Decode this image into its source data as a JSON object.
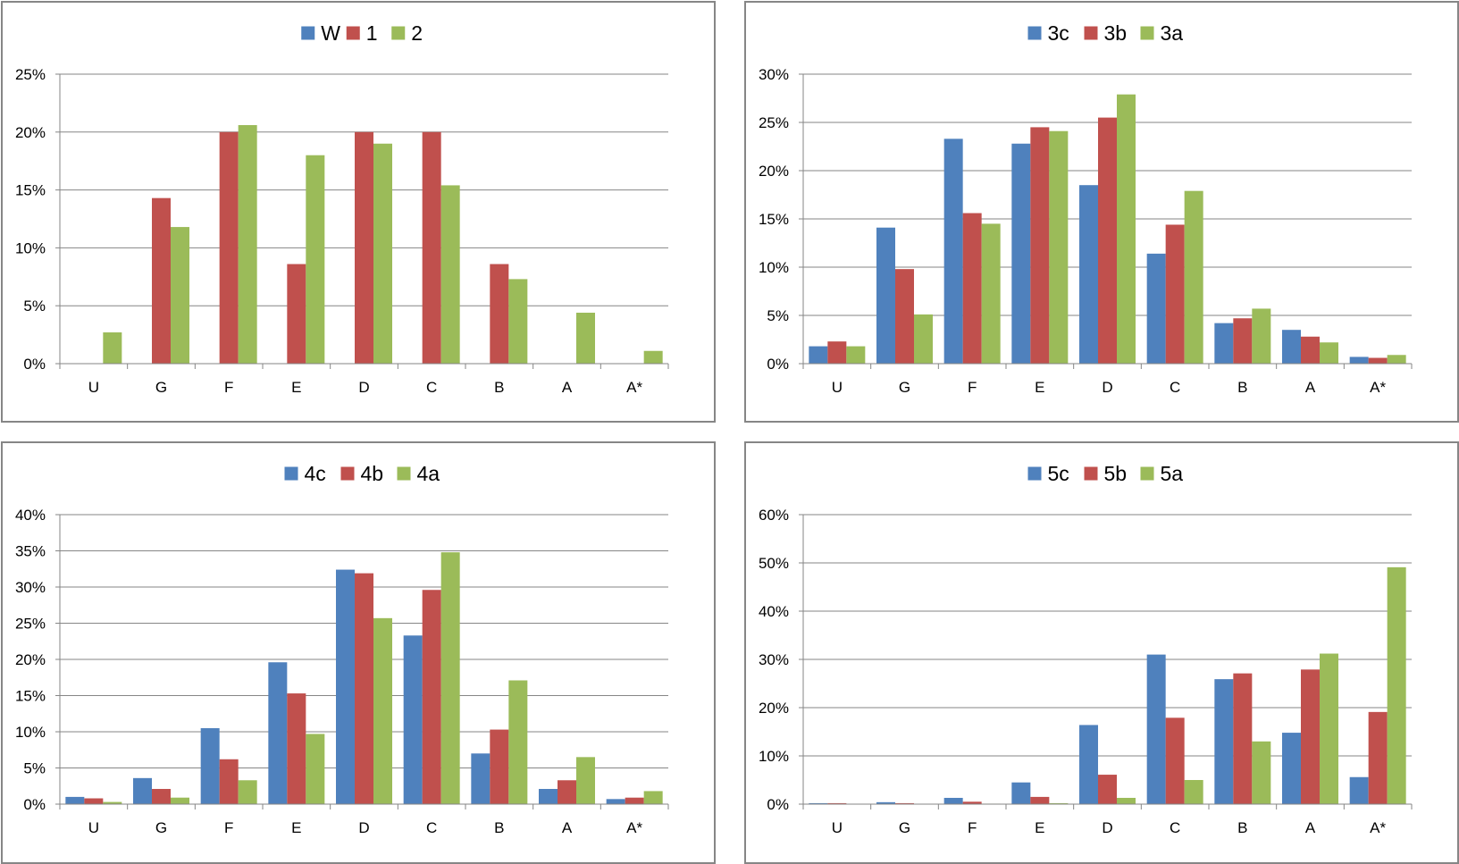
{
  "colors": {
    "blue": "#4F81BD",
    "red": "#C0504D",
    "green": "#9BBB59",
    "grid": "#868686",
    "axis": "#868686"
  },
  "chart_data": [
    {
      "type": "bar",
      "categories": [
        "U",
        "G",
        "F",
        "E",
        "D",
        "C",
        "B",
        "A",
        "A*"
      ],
      "yticks": [
        "0%",
        "5%",
        "10%",
        "15%",
        "20%",
        "25%"
      ],
      "ylim": [
        0,
        25
      ],
      "legend_position": "top-center",
      "grid": true,
      "series": [
        {
          "name": "W",
          "color": "#4F81BD",
          "values": [
            0,
            0,
            0,
            0,
            0,
            0,
            0,
            0,
            0
          ]
        },
        {
          "name": "1",
          "color": "#C0504D",
          "values": [
            0,
            14.3,
            20,
            8.6,
            20,
            20,
            8.6,
            0,
            0
          ]
        },
        {
          "name": "2",
          "color": "#9BBB59",
          "values": [
            2.7,
            11.8,
            20.6,
            18,
            19,
            15.4,
            7.3,
            4.4,
            1.1
          ]
        }
      ]
    },
    {
      "type": "bar",
      "categories": [
        "U",
        "G",
        "F",
        "E",
        "D",
        "C",
        "B",
        "A",
        "A*"
      ],
      "yticks": [
        "0%",
        "5%",
        "10%",
        "15%",
        "20%",
        "25%",
        "30%"
      ],
      "ylim": [
        0,
        30
      ],
      "legend_position": "top-center",
      "grid": true,
      "series": [
        {
          "name": "3c",
          "color": "#4F81BD",
          "values": [
            1.8,
            14.1,
            23.3,
            22.8,
            18.5,
            11.4,
            4.2,
            3.5,
            0.7
          ]
        },
        {
          "name": "3b",
          "color": "#C0504D",
          "values": [
            2.3,
            9.8,
            15.6,
            24.5,
            25.5,
            14.4,
            4.7,
            2.8,
            0.6
          ]
        },
        {
          "name": "3a",
          "color": "#9BBB59",
          "values": [
            1.8,
            5.1,
            14.5,
            24.1,
            27.9,
            17.9,
            5.7,
            2.2,
            0.9
          ]
        }
      ]
    },
    {
      "type": "bar",
      "categories": [
        "U",
        "G",
        "F",
        "E",
        "D",
        "C",
        "B",
        "A",
        "A*"
      ],
      "yticks": [
        "0%",
        "5%",
        "10%",
        "15%",
        "20%",
        "25%",
        "30%",
        "35%",
        "40%"
      ],
      "ylim": [
        0,
        40
      ],
      "legend_position": "top-center",
      "grid": true,
      "series": [
        {
          "name": "4c",
          "color": "#4F81BD",
          "values": [
            1.0,
            3.6,
            10.5,
            19.6,
            32.4,
            23.3,
            7.0,
            2.1,
            0.7
          ]
        },
        {
          "name": "4b",
          "color": "#C0504D",
          "values": [
            0.8,
            2.1,
            6.2,
            15.3,
            31.9,
            29.6,
            10.3,
            3.3,
            0.9
          ]
        },
        {
          "name": "4a",
          "color": "#9BBB59",
          "values": [
            0.3,
            0.9,
            3.3,
            9.7,
            25.7,
            34.8,
            17.1,
            6.5,
            1.8
          ]
        }
      ]
    },
    {
      "type": "bar",
      "categories": [
        "U",
        "G",
        "F",
        "E",
        "D",
        "C",
        "B",
        "A",
        "A*"
      ],
      "yticks": [
        "0%",
        "10%",
        "20%",
        "30%",
        "40%",
        "50%",
        "60%"
      ],
      "ylim": [
        0,
        60
      ],
      "legend_position": "top-center",
      "grid": true,
      "series": [
        {
          "name": "5c",
          "color": "#4F81BD",
          "values": [
            0.2,
            0.4,
            1.3,
            4.5,
            16.4,
            31.0,
            25.9,
            14.8,
            5.6
          ]
        },
        {
          "name": "5b",
          "color": "#C0504D",
          "values": [
            0.2,
            0.2,
            0.5,
            1.5,
            6.1,
            17.9,
            27.1,
            27.9,
            19.1
          ]
        },
        {
          "name": "5a",
          "color": "#9BBB59",
          "values": [
            0.0,
            0.0,
            0.1,
            0.2,
            1.3,
            5.0,
            13.0,
            31.2,
            49.1
          ]
        }
      ]
    }
  ]
}
